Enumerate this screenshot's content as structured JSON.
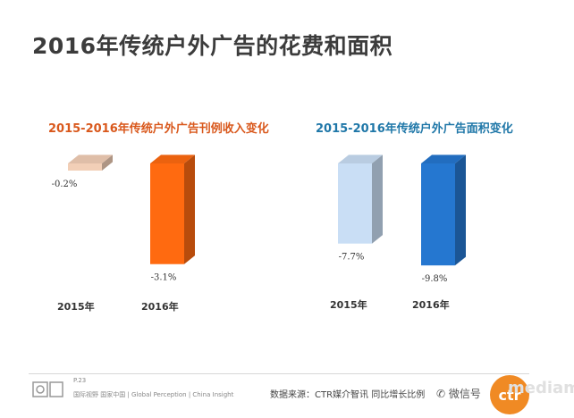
{
  "page_title": "2016年传统户外广告的花费和面积",
  "chart_data": [
    {
      "type": "bar",
      "title": "2015-2016年传统户外广告刊例收入变化",
      "categories": [
        "2015年",
        "2016年"
      ],
      "values": [
        -0.2,
        -3.1
      ],
      "value_labels": [
        "-0.2%",
        "-3.1%"
      ],
      "ylim": [
        -3.3,
        0
      ],
      "colors": [
        "#f2cfb7",
        "#ff6a10"
      ]
    },
    {
      "type": "bar",
      "title": "2015-2016年传统户外广告面积变化",
      "categories": [
        "2015年",
        "2016年"
      ],
      "values": [
        -7.7,
        -9.8
      ],
      "value_labels": [
        "-7.7%",
        "-9.8%"
      ],
      "ylim": [
        -10.3,
        0
      ],
      "colors": [
        "#c9def5",
        "#2577d0"
      ]
    }
  ],
  "footer": {
    "page_number": "P.23",
    "tagline": "国际视野  国家中国 | Global Perception | China Insight",
    "source": "数据来源：CTR媒介智讯   同比增长比例",
    "wechat": "微信号",
    "brand": "mediam",
    "logo_text": "ctr"
  }
}
